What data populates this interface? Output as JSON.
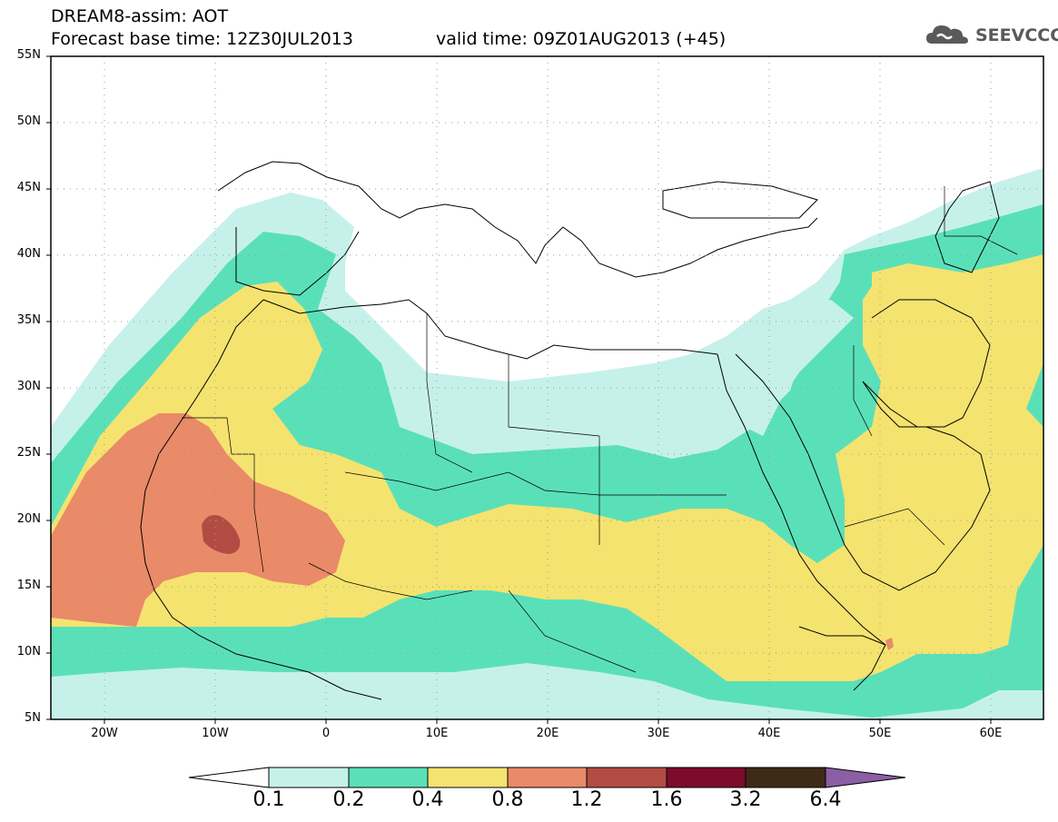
{
  "title_line1": "DREAM8-assim: AOT",
  "title_line2": "Forecast base time: 12Z30JUL2013",
  "valid_time": "valid time: 09Z01AUG2013 (+45)",
  "logo_text": "SEEVCCC",
  "lat_labels": [
    "55N",
    "50N",
    "45N",
    "40N",
    "35N",
    "30N",
    "25N",
    "20N",
    "15N",
    "10N",
    "5N"
  ],
  "lon_labels": [
    "20W",
    "10W",
    "0",
    "10E",
    "20E",
    "30E",
    "40E",
    "50E",
    "60E"
  ],
  "colorbar": {
    "levels": [
      "0.1",
      "0.2",
      "0.4",
      "0.8",
      "1.2",
      "1.6",
      "3.2",
      "6.4"
    ],
    "colors": [
      "#ffffff",
      "#c6f1ea",
      "#5ae0b9",
      "#f5e36f",
      "#e98a68",
      "#b24c43",
      "#7d0b2b",
      "#3f2a17",
      "#8a5fa3"
    ]
  },
  "map": {
    "lat_range": [
      5,
      55
    ],
    "lon_range": [
      -25,
      65
    ],
    "gridlines": true
  }
}
